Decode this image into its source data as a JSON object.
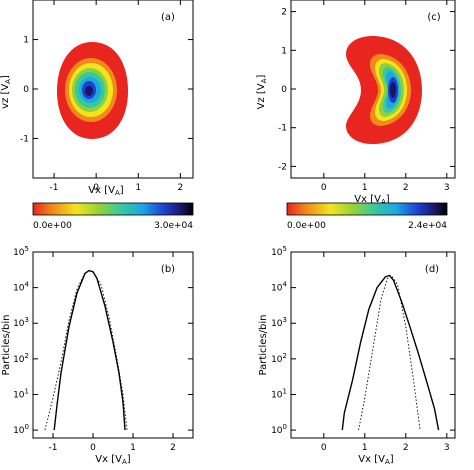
{
  "chart_data": [
    {
      "type": "heatmap",
      "panel_label": "(a)",
      "xlabel": "Vx [V_A]",
      "ylabel": "vz [V_A]",
      "xlim": [
        -1.5,
        2.3
      ],
      "ylim": [
        -1.8,
        1.8
      ],
      "x_ticks": [
        "-1",
        "0",
        "1",
        "2"
      ],
      "y_ticks": [
        "-1",
        "0",
        "1"
      ],
      "distribution": {
        "shape": "ellipse",
        "center": [
          -0.05,
          0.0
        ],
        "radius": [
          0.62,
          1.1
        ],
        "peak_at": [
          -0.1,
          -0.05
        ]
      },
      "colorbar": {
        "min_label": "0.0e+00",
        "max_label": "3.0e+04",
        "min": 0,
        "max": 30000
      },
      "colors": [
        "#e8251e",
        "#f08a1a",
        "#f3e51c",
        "#8fd13a",
        "#36c99f",
        "#1ea8e0",
        "#1e3fd0",
        "#1a1560",
        "#000000"
      ]
    },
    {
      "type": "heatmap",
      "panel_label": "(c)",
      "xlabel": "Vx [V_A]",
      "ylabel": "Vz [V_A]",
      "xlim": [
        -0.8,
        3.2
      ],
      "ylim": [
        -2.3,
        2.3
      ],
      "x_ticks": [
        "0",
        "1",
        "2",
        "3"
      ],
      "y_ticks": [
        "-2",
        "-1",
        "0",
        "1",
        "2"
      ],
      "distribution": {
        "shape": "crescent",
        "center": [
          1.6,
          0.0
        ],
        "radius": [
          1.05,
          1.1
        ],
        "peak_at": [
          1.65,
          0.0
        ]
      },
      "colorbar": {
        "min_label": "0.0e+00",
        "max_label": "2.4e+04",
        "min": 0,
        "max": 24000
      },
      "colors": [
        "#e8251e",
        "#f08a1a",
        "#f3e51c",
        "#8fd13a",
        "#36c99f",
        "#1ea8e0",
        "#1e3fd0",
        "#1a1560",
        "#000000"
      ]
    },
    {
      "type": "line",
      "panel_label": "(b)",
      "xlabel": "Vx [V_A]",
      "ylabel": "Particles/bin",
      "yscale": "log",
      "xlim": [
        -1.5,
        2.5
      ],
      "ylim": [
        0.6,
        100000
      ],
      "x_ticks": [
        "-1",
        "0",
        "1",
        "2"
      ],
      "y_ticks": [
        "10^0",
        "10^1",
        "10^2",
        "10^3",
        "10^4",
        "10^5"
      ],
      "series": [
        {
          "style": "solid",
          "x": [
            -0.97,
            -0.9,
            -0.8,
            -0.6,
            -0.4,
            -0.2,
            -0.1,
            0.0,
            0.1,
            0.3,
            0.5,
            0.65,
            0.75,
            0.8
          ],
          "y": [
            1,
            5,
            40,
            800,
            7000,
            25000,
            30000,
            28000,
            18000,
            3000,
            300,
            40,
            6,
            1
          ]
        },
        {
          "style": "dotted",
          "x": [
            -1.2,
            -1.0,
            -0.8,
            -0.6,
            -0.4,
            -0.2,
            -0.1,
            0.0,
            0.2,
            0.4,
            0.6,
            0.75,
            0.85
          ],
          "y": [
            1,
            8,
            80,
            1200,
            9000,
            26000,
            30000,
            27000,
            12000,
            1500,
            100,
            10,
            1
          ]
        }
      ]
    },
    {
      "type": "line",
      "panel_label": "(d)",
      "xlabel": "Vx [V_A]",
      "ylabel": "Particles/bin",
      "yscale": "log",
      "xlim": [
        -0.8,
        3.2
      ],
      "ylim": [
        0.6,
        100000
      ],
      "x_ticks": [
        "0",
        "1",
        "2",
        "3"
      ],
      "y_ticks": [
        "10^0",
        "10^1",
        "10^2",
        "10^3",
        "10^4",
        "10^5"
      ],
      "series": [
        {
          "style": "solid",
          "x": [
            0.45,
            0.5,
            0.7,
            0.9,
            1.1,
            1.3,
            1.5,
            1.6,
            1.7,
            1.9,
            2.1,
            2.3,
            2.5,
            2.7,
            2.8
          ],
          "y": [
            1,
            3,
            25,
            300,
            2500,
            10000,
            20000,
            22000,
            16000,
            4000,
            800,
            150,
            25,
            4,
            1
          ]
        },
        {
          "style": "dotted",
          "x": [
            0.85,
            1.0,
            1.2,
            1.4,
            1.55,
            1.65,
            1.8,
            2.0,
            2.2,
            2.35
          ],
          "y": [
            1,
            8,
            200,
            5000,
            18000,
            22000,
            12000,
            800,
            20,
            1
          ]
        }
      ]
    }
  ]
}
